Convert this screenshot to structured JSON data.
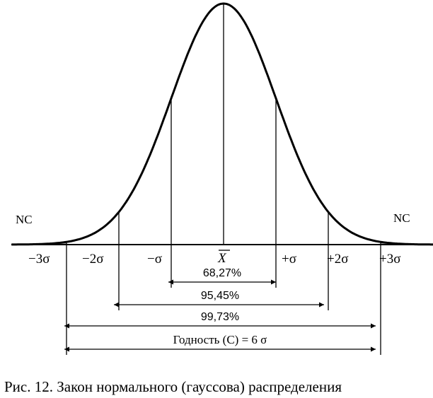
{
  "figure": {
    "nc_left": "NC",
    "nc_right": "NC",
    "sigma_labels": [
      "−3σ",
      "−2σ",
      "−σ",
      "+σ",
      "+2σ",
      "+3σ"
    ],
    "mean_label": "X",
    "intervals": [
      {
        "label": "68,27%",
        "span": "±1σ"
      },
      {
        "label": "95,45%",
        "span": "±2σ"
      },
      {
        "label": "99,73%",
        "span": "±3σ"
      },
      {
        "label": "Годность (С) = 6 σ",
        "span": "±3σ"
      }
    ],
    "colors": {
      "line": "#000000",
      "tail_fill": "#a6a6a6"
    }
  },
  "caption": "Рис. 12. Закон нормального (гауссова) распределения"
}
